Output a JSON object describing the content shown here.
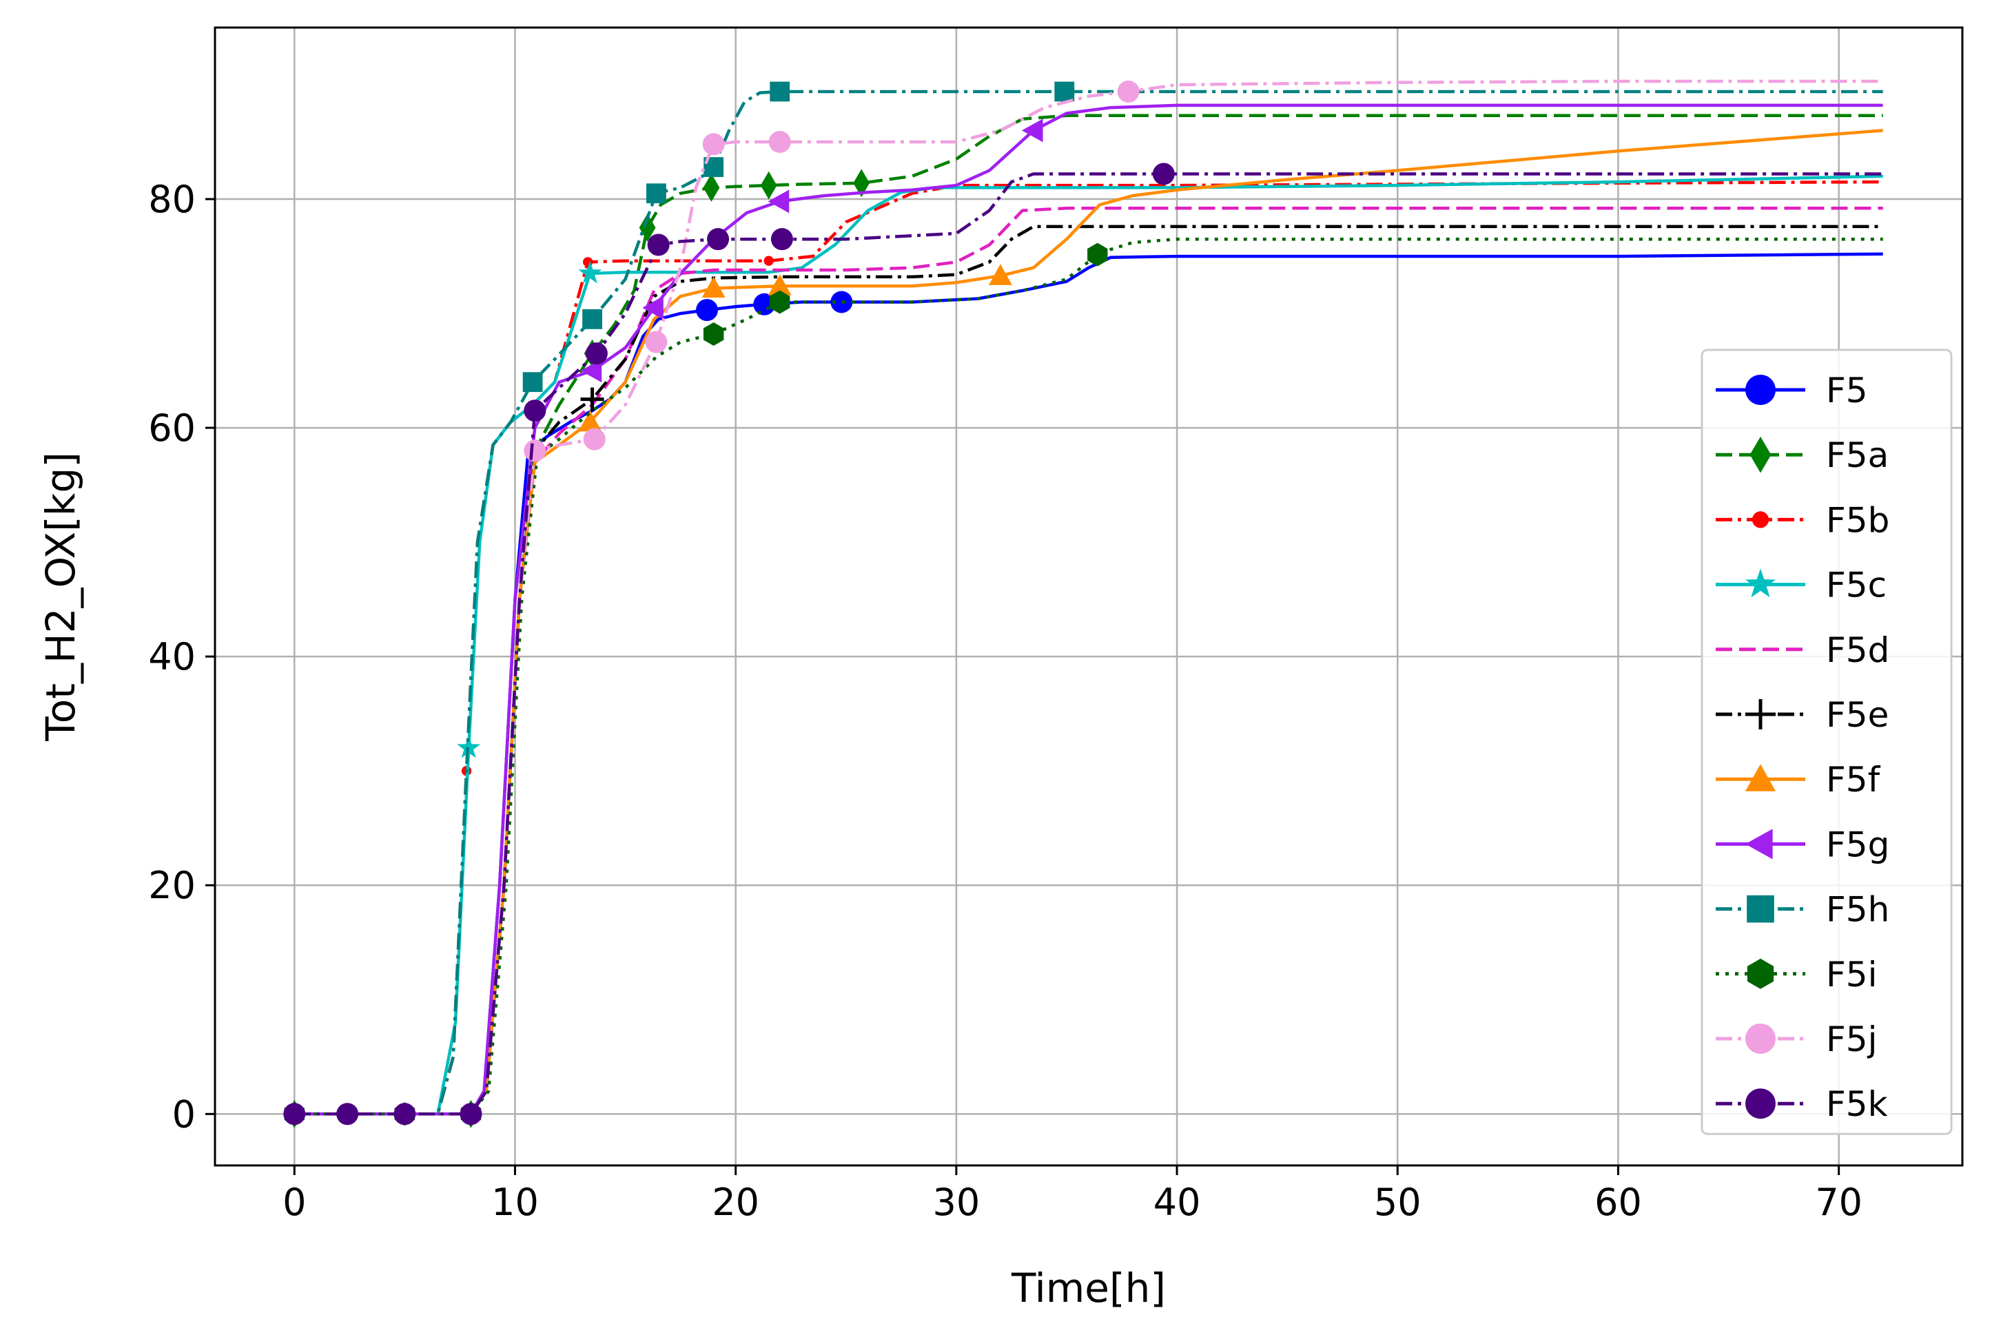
{
  "chart_data": {
    "type": "line",
    "title": "",
    "xlabel": "Time[h]",
    "ylabel": "Tot_H2_OX[kg]",
    "xlim": [
      -3.6,
      75.6
    ],
    "ylim": [
      -4.5,
      95
    ],
    "xticks": [
      0,
      10,
      20,
      30,
      40,
      50,
      60,
      70
    ],
    "yticks": [
      0,
      20,
      40,
      60,
      80
    ],
    "grid": true,
    "legend_position": "lower-right",
    "series": [
      {
        "name": "F5",
        "color": "#0000ff",
        "dash": "solid",
        "marker": "circle",
        "x": [
          0,
          2.4,
          5,
          8,
          8.6,
          9.3,
          10,
          10.6,
          11.5,
          12.5,
          13.5,
          14.3,
          15,
          15.8,
          16.5,
          17.5,
          18.7,
          20,
          21.3,
          23,
          24.8,
          28,
          31,
          33,
          35,
          36,
          37,
          40,
          50,
          60,
          72
        ],
        "y": [
          0,
          0,
          0,
          0,
          2,
          20,
          45,
          58,
          59.3,
          60.5,
          61.5,
          62.5,
          64,
          68,
          69.5,
          70,
          70.3,
          70.6,
          70.8,
          71,
          71,
          71,
          71.3,
          72,
          72.8,
          74,
          74.9,
          75,
          75,
          75,
          75.2
        ],
        "markers_x": [
          18.7,
          21.3,
          24.8
        ]
      },
      {
        "name": "F5a",
        "color": "#008000",
        "dash": "dashed",
        "marker": "diamond",
        "x": [
          0,
          2.4,
          5,
          8,
          8.7,
          9.5,
          10.2,
          10.9,
          12,
          13.5,
          14.5,
          15.4,
          16,
          16.6,
          17.5,
          18.9,
          20,
          21.5,
          23,
          25.7,
          28,
          30,
          31.5,
          33,
          35,
          40,
          50,
          60,
          72
        ],
        "y": [
          0,
          0,
          0,
          0,
          2,
          20,
          45,
          58,
          62,
          66.5,
          69,
          72,
          77.5,
          79.5,
          80.5,
          81,
          81.1,
          81.2,
          81.3,
          81.4,
          82,
          83.5,
          85.5,
          87,
          87.3,
          87.3,
          87.3,
          87.3,
          87.3
        ],
        "markers_x": [
          0,
          8,
          13.5,
          16,
          18.9,
          21.5,
          25.7
        ]
      },
      {
        "name": "F5b",
        "color": "#ff0000",
        "dash": "dashdot",
        "marker": "point",
        "x": [
          0,
          2.4,
          5,
          6.5,
          7.2,
          7.8,
          8.3,
          9,
          9.8,
          10.8,
          11.8,
          13.3,
          15,
          17,
          19,
          21.5,
          23.5,
          25,
          28,
          30,
          40,
          50,
          60,
          72
        ],
        "y": [
          0,
          0,
          0,
          0,
          5,
          30,
          50,
          58.5,
          60.5,
          62,
          64,
          74.5,
          74.6,
          74.6,
          74.6,
          74.6,
          75,
          78,
          80.5,
          81.2,
          81.2,
          81.3,
          81.4,
          81.5
        ],
        "markers_x": [
          7.8,
          13.3,
          21.5
        ]
      },
      {
        "name": "F5c",
        "color": "#00bfbf",
        "dash": "solid",
        "marker": "star",
        "x": [
          0,
          2.4,
          5,
          6.5,
          7.3,
          7.9,
          8.4,
          9,
          9.8,
          10.8,
          11.8,
          13.4,
          15,
          17,
          19,
          21.5,
          23,
          24.5,
          26,
          27.5,
          29,
          30,
          40,
          50,
          60,
          72
        ],
        "y": [
          0,
          0,
          0,
          0,
          8,
          32,
          50,
          58.5,
          60.5,
          62,
          64,
          73.5,
          73.6,
          73.6,
          73.6,
          73.6,
          74,
          76,
          79,
          80.6,
          81,
          81,
          81,
          81.2,
          81.5,
          82
        ],
        "markers_x": [
          7.9,
          13.4
        ]
      },
      {
        "name": "F5d",
        "color": "#e020c0",
        "dash": "dashed",
        "marker": "none",
        "x": [
          0,
          2.4,
          5,
          8,
          8.7,
          9.5,
          10.2,
          10.9,
          12,
          13.5,
          15,
          16.3,
          17.5,
          19,
          22,
          25,
          28,
          30,
          31.5,
          33,
          35,
          40,
          50,
          60,
          72
        ],
        "y": [
          0,
          0,
          0,
          0,
          2,
          20,
          45,
          57,
          59.5,
          62,
          66,
          72,
          73.5,
          73.8,
          73.8,
          73.8,
          74,
          74.5,
          76,
          79,
          79.2,
          79.2,
          79.2,
          79.2,
          79.2
        ],
        "markers_x": []
      },
      {
        "name": "F5e",
        "color": "#000000",
        "dash": "dashdot",
        "marker": "plus",
        "x": [
          0,
          2.4,
          5,
          8,
          8.7,
          9.5,
          10.2,
          10.9,
          12,
          13.5,
          15,
          16.3,
          17.5,
          19,
          22,
          25,
          28,
          30,
          31.5,
          32.5,
          33.5,
          35,
          40,
          50,
          60,
          72
        ],
        "y": [
          0,
          0,
          0,
          0,
          2,
          20,
          45,
          58,
          60.5,
          62.5,
          66,
          71.5,
          72.8,
          73.1,
          73.2,
          73.2,
          73.2,
          73.4,
          74.5,
          76.5,
          77.6,
          77.6,
          77.6,
          77.6,
          77.6,
          77.6
        ],
        "markers_x": [
          13.5
        ]
      },
      {
        "name": "F5f",
        "color": "#ff8c00",
        "dash": "solid",
        "marker": "triangle-up",
        "x": [
          0,
          2.4,
          5,
          8,
          8.7,
          9.5,
          10.2,
          10.9,
          12,
          13.4,
          15,
          16.3,
          17.5,
          19,
          22,
          25,
          28,
          30,
          32,
          33.5,
          35,
          36.5,
          38,
          40,
          45,
          50,
          60,
          72
        ],
        "y": [
          0,
          0,
          0,
          0,
          2,
          20,
          45,
          57,
          58.5,
          60.5,
          64,
          69.5,
          71.5,
          72.2,
          72.4,
          72.4,
          72.4,
          72.7,
          73.3,
          74,
          76.5,
          79.5,
          80.3,
          80.8,
          81.7,
          82.5,
          84.2,
          86
        ],
        "markers_x": [
          13.4,
          19,
          22,
          32
        ]
      },
      {
        "name": "F5g",
        "color": "#a020f0",
        "dash": "solid",
        "marker": "triangle-left",
        "x": [
          0,
          2.4,
          5,
          8,
          8.6,
          9.3,
          10,
          10.9,
          12,
          13.5,
          15,
          16.3,
          17.5,
          19,
          20.5,
          22,
          24,
          26,
          28,
          30,
          31.5,
          33.5,
          35,
          37,
          40,
          50,
          60,
          72
        ],
        "y": [
          0,
          0,
          0,
          0,
          2,
          20,
          45,
          60,
          64,
          65,
          67,
          70.5,
          73.5,
          76.5,
          78.8,
          79.8,
          80.3,
          80.6,
          80.8,
          81.2,
          82.5,
          86,
          87.5,
          88,
          88.2,
          88.2,
          88.2,
          88.2
        ],
        "markers_x": [
          13.5,
          16.3,
          22,
          33.5
        ]
      },
      {
        "name": "F5h",
        "color": "#008080",
        "dash": "dashdot",
        "marker": "square",
        "x": [
          0,
          2.4,
          5,
          6.5,
          7.2,
          7.8,
          8.3,
          9,
          9.8,
          10.8,
          11.8,
          13.5,
          15,
          16.4,
          17.5,
          18.5,
          19,
          19.7,
          20.4,
          21.1,
          22,
          25,
          30,
          34.9,
          40,
          50,
          60,
          72
        ],
        "y": [
          0,
          0,
          0,
          0,
          5,
          30,
          50,
          58.5,
          60.5,
          64,
          66,
          69.5,
          73,
          80.5,
          81,
          82,
          82.8,
          86,
          88.5,
          89.3,
          89.4,
          89.4,
          89.4,
          89.4,
          89.4,
          89.4,
          89.4,
          89.4
        ],
        "markers_x": [
          10.8,
          13.5,
          16.4,
          19,
          22,
          34.9
        ]
      },
      {
        "name": "F5i",
        "color": "#006400",
        "dash": "dotted",
        "marker": "hexagon",
        "x": [
          0,
          2.4,
          5,
          8,
          8.8,
          9.6,
          10.3,
          11,
          12,
          13.5,
          15,
          16.4,
          17.5,
          19,
          20.5,
          22,
          25,
          28,
          31,
          33,
          35,
          36.5,
          38,
          40,
          50,
          60,
          72
        ],
        "y": [
          0,
          0,
          0,
          0,
          2,
          20,
          45,
          57.5,
          59,
          61.5,
          63.5,
          66.2,
          67.5,
          68.2,
          69.5,
          71,
          71,
          71,
          71.3,
          72,
          73,
          75.3,
          76.2,
          76.5,
          76.5,
          76.5,
          76.5
        ],
        "markers_x": [
          0,
          5,
          8,
          19,
          22,
          36.4
        ]
      },
      {
        "name": "F5j",
        "color": "#f0a0e0",
        "dash": "dashdot",
        "marker": "circle",
        "x": [
          0,
          2.4,
          5,
          8,
          8.7,
          9.5,
          10.2,
          10.9,
          12,
          13.6,
          15,
          16.4,
          17.5,
          18.2,
          19,
          20,
          22,
          25,
          30,
          32,
          34,
          36,
          37.8,
          40,
          50,
          60,
          72
        ],
        "y": [
          0,
          0,
          0,
          0,
          2,
          20,
          45,
          58,
          58.5,
          59,
          62,
          67.5,
          74,
          81,
          84.8,
          85,
          85,
          85,
          85,
          86,
          88,
          89,
          89.4,
          90,
          90.2,
          90.3,
          90.3
        ],
        "markers_x": [
          10.9,
          13.6,
          16.4,
          19,
          22,
          37.8
        ]
      },
      {
        "name": "F5k",
        "color": "#4b0082",
        "dash": "dashdot",
        "marker": "circle",
        "x": [
          0,
          2.4,
          5,
          8,
          8.7,
          9.5,
          10.2,
          10.9,
          12,
          13.7,
          15,
          16.5,
          17.5,
          19.2,
          22.1,
          25,
          30,
          31.5,
          32.5,
          33.5,
          39.4,
          50,
          60,
          72
        ],
        "y": [
          0,
          0,
          0,
          0,
          2,
          20,
          45,
          61.5,
          63.5,
          66.5,
          70,
          76,
          76.3,
          76.5,
          76.5,
          76.5,
          77,
          79,
          81.5,
          82.2,
          82.2,
          82.2,
          82.2,
          82.2
        ],
        "markers_x": [
          0,
          2.4,
          5,
          8,
          10.9,
          13.7,
          16.5,
          19.2,
          22.1,
          39.4
        ]
      }
    ]
  }
}
